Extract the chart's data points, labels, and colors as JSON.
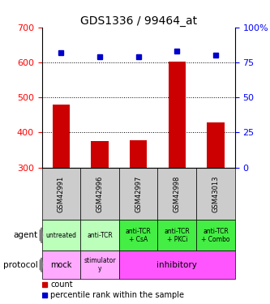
{
  "title": "GDS1336 / 99464_at",
  "samples": [
    "GSM42991",
    "GSM42996",
    "GSM42997",
    "GSM42998",
    "GSM43013"
  ],
  "counts": [
    480,
    375,
    378,
    602,
    428
  ],
  "percentile_ranks": [
    82,
    79,
    79,
    83,
    80
  ],
  "ylim_left": [
    300,
    700
  ],
  "ylim_right": [
    0,
    100
  ],
  "yticks_left": [
    300,
    400,
    500,
    600,
    700
  ],
  "yticks_right": [
    0,
    25,
    50,
    75,
    100
  ],
  "yticklabels_right": [
    "0",
    "25",
    "50",
    "75",
    "100%"
  ],
  "bar_color": "#cc0000",
  "dot_color": "#0000cc",
  "agent_labels": [
    "untreated",
    "anti-TCR",
    "anti-TCR\n+ CsA",
    "anti-TCR\n+ PKCi",
    "anti-TCR\n+ Combo"
  ],
  "agent_colors": [
    "#bbffbb",
    "#bbffbb",
    "#44ee44",
    "#44ee44",
    "#44ee44"
  ],
  "sample_bg_color": "#cccccc",
  "legend_count_color": "#cc0000",
  "legend_pct_color": "#0000cc",
  "gridline_vals": [
    400,
    500,
    600
  ]
}
